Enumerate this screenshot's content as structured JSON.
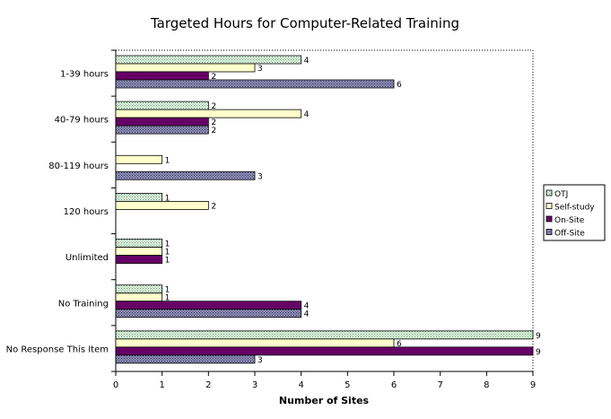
{
  "chart_data": {
    "type": "bar",
    "orientation": "horizontal",
    "title": "Targeted Hours for Computer-Related Training",
    "xlabel": "Number of Sites",
    "ylabel": "",
    "xlim": [
      0,
      9
    ],
    "xticks": [
      "0",
      "1",
      "2",
      "3",
      "4",
      "5",
      "6",
      "7",
      "8",
      "9"
    ],
    "categories": [
      "1-39 hours",
      "40-79 hours",
      "80-119 hours",
      "120 hours",
      "Unlimited",
      "No Training",
      "No Response This Item"
    ],
    "series": [
      {
        "name": "OTJ",
        "color": "#d4ecd4",
        "pattern": "dots",
        "values": [
          4,
          2,
          null,
          1,
          1,
          1,
          9
        ]
      },
      {
        "name": "Self-study",
        "color": "#ffffcc",
        "pattern": "solid",
        "values": [
          3,
          4,
          1,
          2,
          1,
          1,
          6
        ]
      },
      {
        "name": "On-Site",
        "color": "#660066",
        "pattern": "solid",
        "values": [
          2,
          2,
          null,
          null,
          1,
          4,
          9
        ]
      },
      {
        "name": "Off-Site",
        "color": "#9999bb",
        "pattern": "crosshatch",
        "values": [
          6,
          2,
          3,
          null,
          null,
          4,
          3
        ]
      }
    ],
    "grid": false,
    "legend": "right"
  }
}
